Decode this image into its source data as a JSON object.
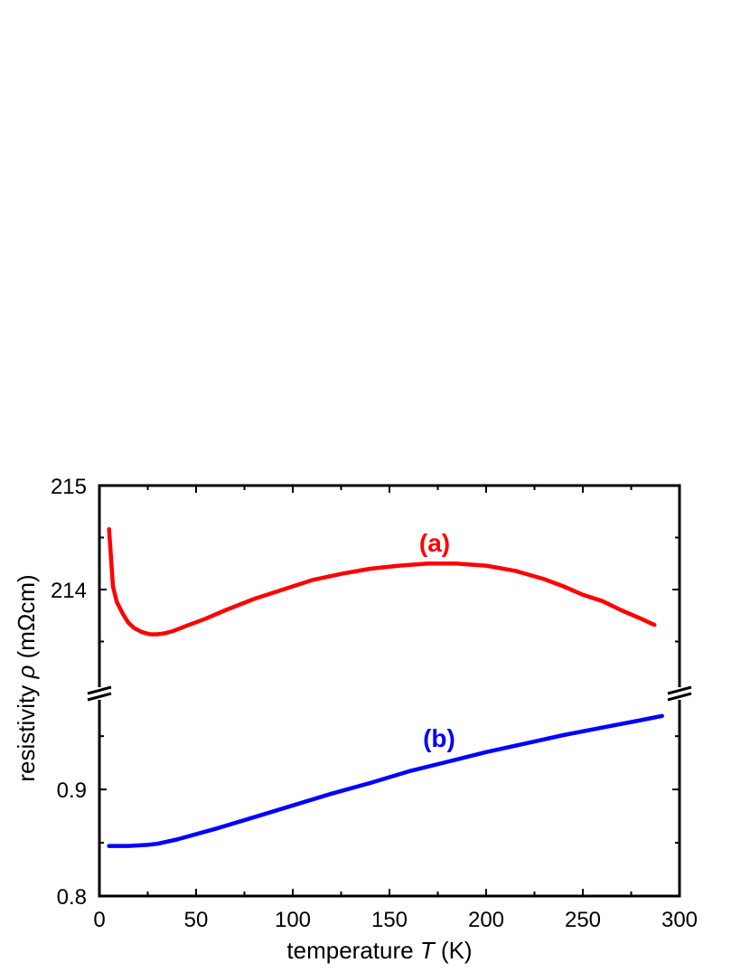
{
  "chart_data": {
    "type": "line",
    "xlabel_main": "temperature ",
    "xlabel_var": "T",
    "xlabel_unit": " (K)",
    "ylabel_main": "resistivity ",
    "ylabel_var": "ρ",
    "ylabel_unit": " (mΩcm)",
    "xlim": [
      0,
      300
    ],
    "x_ticks": [
      "0",
      "50",
      "100",
      "150",
      "200",
      "250",
      "300"
    ],
    "y_broken_axis": true,
    "upper_panel": {
      "ylim": [
        213.0,
        215.0
      ],
      "y_tick_labels": [
        "215",
        "214"
      ],
      "y_tick_values": [
        215,
        214
      ]
    },
    "lower_panel": {
      "ylim": [
        0.8,
        0.99
      ],
      "y_tick_labels": [
        "0.9",
        "0.8"
      ],
      "y_tick_values": [
        0.9,
        0.8
      ]
    },
    "grid": false,
    "legend": "none",
    "series": [
      {
        "name": "(a)",
        "color": "#ff0000",
        "panel": "upper",
        "x": [
          5,
          7,
          9,
          12,
          15,
          18,
          22,
          26,
          30,
          34,
          38,
          45,
          55,
          65,
          80,
          95,
          110,
          125,
          140,
          155,
          170,
          185,
          200,
          215,
          230,
          240,
          250,
          260,
          270,
          280,
          287
        ],
        "y": [
          214.58,
          214.03,
          213.88,
          213.77,
          213.68,
          213.63,
          213.59,
          213.57,
          213.57,
          213.58,
          213.6,
          213.65,
          213.72,
          213.8,
          213.91,
          214.0,
          214.09,
          214.15,
          214.2,
          214.23,
          214.25,
          214.25,
          214.23,
          214.18,
          214.1,
          214.03,
          213.95,
          213.89,
          213.8,
          213.72,
          213.66
        ]
      },
      {
        "name": "(b)",
        "color": "#0000ff",
        "panel": "lower",
        "x": [
          5,
          10,
          15,
          20,
          25,
          30,
          40,
          50,
          60,
          80,
          100,
          120,
          140,
          160,
          180,
          200,
          220,
          240,
          260,
          280,
          291
        ],
        "y": [
          0.847,
          0.847,
          0.847,
          0.8475,
          0.848,
          0.849,
          0.853,
          0.858,
          0.863,
          0.874,
          0.885,
          0.896,
          0.906,
          0.917,
          0.926,
          0.935,
          0.943,
          0.951,
          0.958,
          0.965,
          0.969
        ]
      }
    ],
    "annotations": [
      {
        "text": "(a)",
        "color": "#ff0000"
      },
      {
        "text": "(b)",
        "color": "#0000ff"
      }
    ]
  }
}
